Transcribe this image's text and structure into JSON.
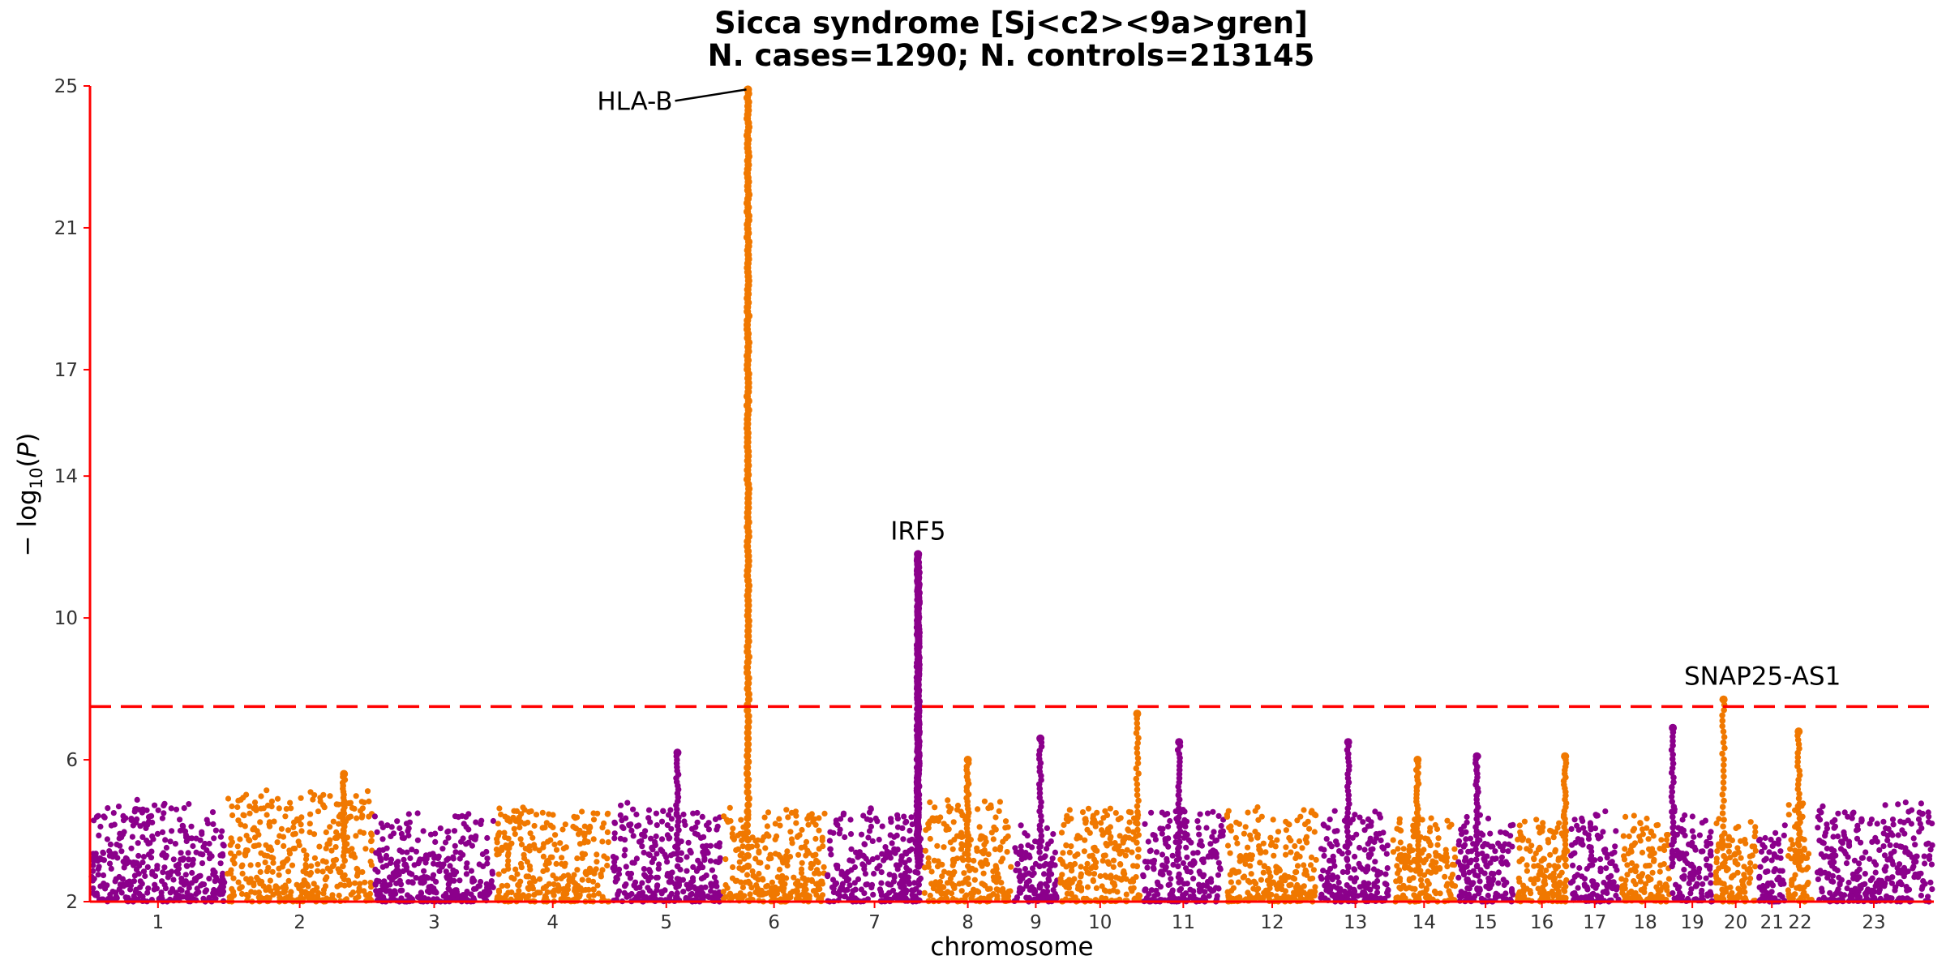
{
  "chart_data": {
    "type": "scatter",
    "subtype": "manhattan",
    "title": "Sicca syndrome [Sj<c2><9a>gren]",
    "subtitle": "N. cases=1290; N. controls=213145",
    "xlabel": "chromosome",
    "ylabel": "− log10(P)",
    "ylim": [
      2,
      25
    ],
    "yticks": [
      2,
      6,
      10,
      14,
      17,
      21,
      25
    ],
    "significance_threshold": 7.5,
    "colors": {
      "odd": "#8B008B",
      "even": "#F07800",
      "threshold": "#FF0000",
      "axis": "#FF0000"
    },
    "grid": false,
    "chromosomes": [
      {
        "label": "1",
        "range": [
          0.0,
          0.94
        ],
        "background_max": 4.6
      },
      {
        "label": "2",
        "range": [
          0.94,
          1.96
        ],
        "background_max": 4.9
      },
      {
        "label": "3",
        "range": [
          1.96,
          2.8
        ],
        "background_max": 4.3
      },
      {
        "label": "4",
        "range": [
          2.8,
          3.6
        ],
        "background_max": 4.4
      },
      {
        "label": "5",
        "range": [
          3.6,
          4.37
        ],
        "background_max": 4.5
      },
      {
        "label": "6",
        "range": [
          4.37,
          5.09
        ],
        "background_max": 4.4
      },
      {
        "label": "7",
        "range": [
          5.09,
          5.76
        ],
        "background_max": 4.4
      },
      {
        "label": "8",
        "range": [
          5.76,
          6.38
        ],
        "background_max": 4.6
      },
      {
        "label": "9",
        "range": [
          6.38,
          6.7
        ],
        "background_max": 3.9
      },
      {
        "label": "10",
        "range": [
          6.7,
          7.27
        ],
        "background_max": 4.5
      },
      {
        "label": "11",
        "range": [
          7.27,
          7.85
        ],
        "background_max": 4.5
      },
      {
        "label": "12",
        "range": [
          7.85,
          8.5
        ],
        "background_max": 4.4
      },
      {
        "label": "13",
        "range": [
          8.5,
          9.0
        ],
        "background_max": 4.3
      },
      {
        "label": "14",
        "range": [
          9.0,
          9.45
        ],
        "background_max": 4.2
      },
      {
        "label": "15",
        "range": [
          9.45,
          9.85
        ],
        "background_max": 4.4
      },
      {
        "label": "16",
        "range": [
          9.85,
          10.23
        ],
        "background_max": 4.2
      },
      {
        "label": "17",
        "range": [
          10.23,
          10.58
        ],
        "background_max": 4.3
      },
      {
        "label": "18",
        "range": [
          10.58,
          10.93
        ],
        "background_max": 4.2
      },
      {
        "label": "19",
        "range": [
          10.93,
          11.23
        ],
        "background_max": 4.4
      },
      {
        "label": "20",
        "range": [
          11.23,
          11.53
        ],
        "background_max": 4.2
      },
      {
        "label": "21",
        "range": [
          11.53,
          11.73
        ],
        "background_max": 4.0
      },
      {
        "label": "22",
        "range": [
          11.73,
          11.92
        ],
        "background_max": 4.6
      },
      {
        "label": "23",
        "range": [
          11.92,
          12.75
        ],
        "background_max": 4.6
      }
    ],
    "peaks": [
      {
        "chrom": "6",
        "pos": 0.25,
        "max": 24.9
      },
      {
        "chrom": "7",
        "pos": 0.95,
        "max": 11.8
      },
      {
        "chrom": "20",
        "pos": 0.22,
        "max": 7.7
      },
      {
        "chrom": "5",
        "pos": 0.6,
        "max": 6.2
      },
      {
        "chrom": "9",
        "pos": 0.6,
        "max": 6.6
      },
      {
        "chrom": "11",
        "pos": 0.45,
        "max": 6.5
      },
      {
        "chrom": "10",
        "pos": 0.95,
        "max": 7.3
      },
      {
        "chrom": "14",
        "pos": 0.4,
        "max": 6.0
      },
      {
        "chrom": "15",
        "pos": 0.35,
        "max": 6.1
      },
      {
        "chrom": "16",
        "pos": 0.92,
        "max": 6.1
      },
      {
        "chrom": "19",
        "pos": 0.05,
        "max": 6.9
      },
      {
        "chrom": "22",
        "pos": 0.45,
        "max": 6.8
      },
      {
        "chrom": "13",
        "pos": 0.4,
        "max": 6.5
      },
      {
        "chrom": "8",
        "pos": 0.5,
        "max": 6.0
      },
      {
        "chrom": "2",
        "pos": 0.8,
        "max": 5.6
      }
    ],
    "annotations": [
      {
        "label": "HLA-B",
        "chrom": "6",
        "pos": 0.25,
        "y": 24.9,
        "leader": true
      },
      {
        "label": "IRF5",
        "chrom": "7",
        "pos": 0.95,
        "y": 11.8,
        "leader": false
      },
      {
        "label": "SNAP25-AS1",
        "chrom": "20",
        "pos": 0.22,
        "y": 7.7,
        "leader": false
      }
    ]
  }
}
